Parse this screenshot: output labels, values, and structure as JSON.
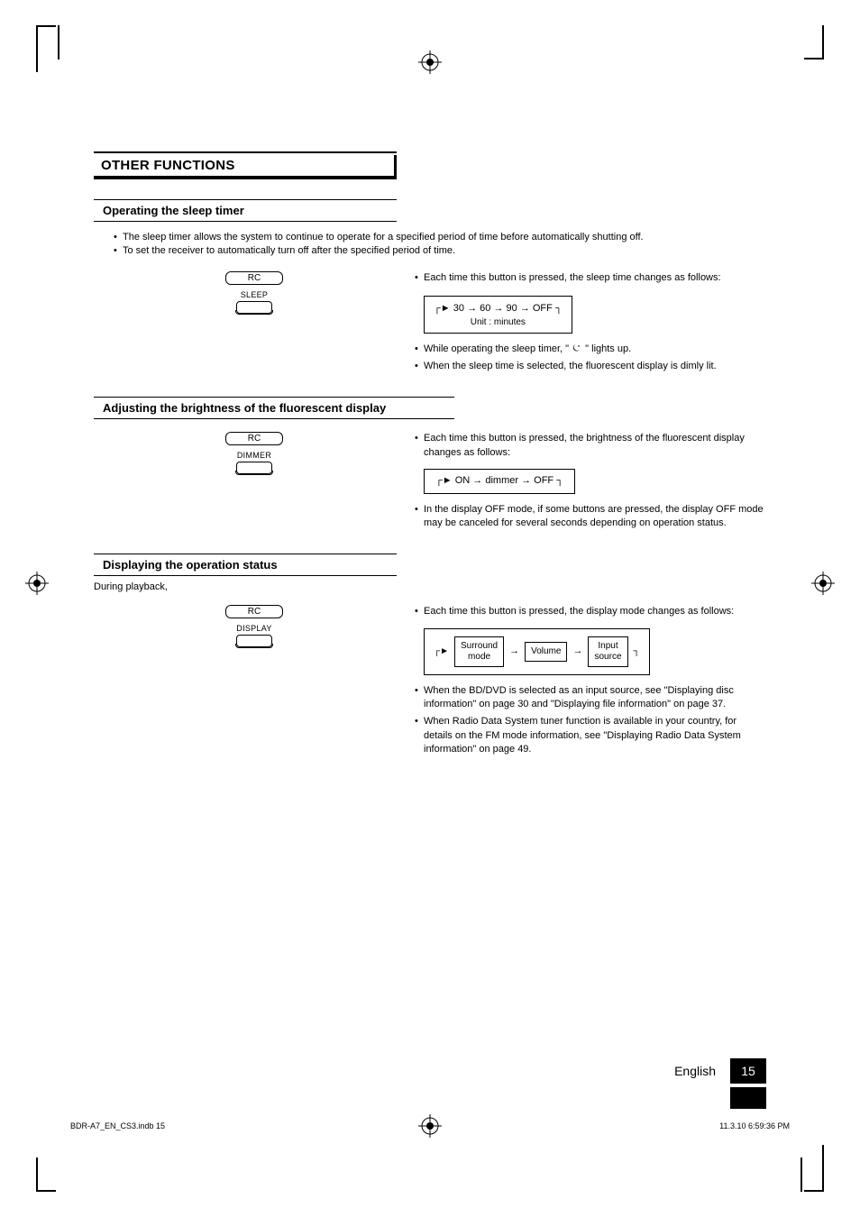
{
  "page": {
    "title": "OTHER FUNCTIONS",
    "language": "English",
    "page_number": "15",
    "footer_file": "BDR-A7_EN_CS3.indb   15",
    "footer_timestamp": "11.3.10   6:59:36 PM"
  },
  "colors": {
    "text": "#000000",
    "bg": "#ffffff",
    "accent_bg": "#000000",
    "accent_text": "#ffffff"
  },
  "sections": {
    "sleep": {
      "heading": "Operating the sleep timer",
      "intro1": "The sleep timer allows the system to continue to operate for a specified period of time before automatically shutting off.",
      "intro2": "To set the receiver to automatically turn off after the specified period of time.",
      "rc_box": "RC",
      "rc_label": "SLEEP",
      "right1": "Each time this button is pressed, the sleep time changes as follows:",
      "seq_values": [
        "30",
        "60",
        "90",
        "OFF"
      ],
      "seq_unit": "Unit : minutes",
      "right2a": "While operating the sleep timer, \"",
      "right2b": "\" lights up.",
      "right3": "When the sleep time is selected, the fluorescent display is dimly lit."
    },
    "dimmer": {
      "heading": "Adjusting the brightness of the fluorescent display",
      "rc_box": "RC",
      "rc_label": "DIMMER",
      "right1": "Each time this button is pressed, the brightness of the fluorescent display changes as follows:",
      "seq": "ON → dimmer → OFF",
      "right2": "In the display OFF mode, if some buttons are pressed, the display OFF mode may be canceled for several seconds depending on operation status."
    },
    "display": {
      "heading": "Displaying the operation status",
      "pre": "During playback,",
      "rc_box": "RC",
      "rc_label": "DISPLAY",
      "right1": "Each time this button is pressed, the display mode changes as follows:",
      "flow": [
        "Surround mode",
        "Volume",
        "Input source"
      ],
      "right2": "When the BD/DVD is selected as an input source, see \"Displaying disc information\" on page 30 and \"Displaying file information\" on page 37.",
      "right3": "When Radio Data System tuner function is available in your country, for details on the FM mode information, see \"Displaying Radio Data System information\" on page 49."
    }
  }
}
